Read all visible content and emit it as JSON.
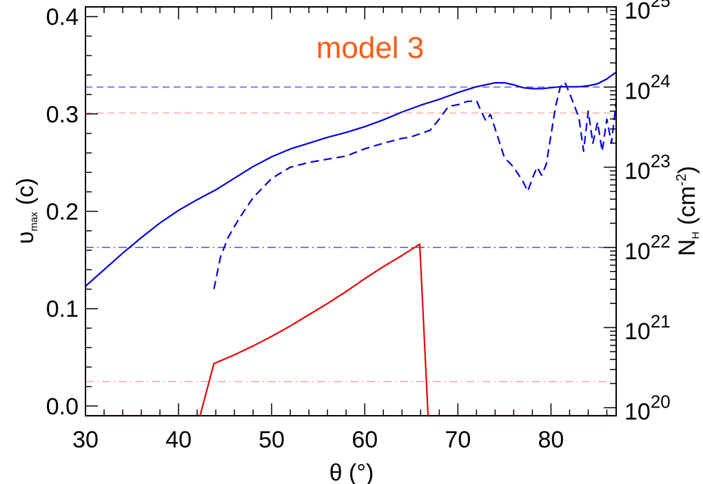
{
  "chart_data": {
    "type": "line",
    "annotation": {
      "text": "model 3",
      "color": "#ff5a14"
    },
    "xlabel": {
      "main": "θ (°)"
    },
    "ylabel_left": {
      "main": "υ",
      "sub": "max",
      "unit": " (c)"
    },
    "ylabel_right": {
      "main": "N",
      "sub": "H",
      "unit_open": " (cm",
      "unit_sup": "-2",
      "unit_close": ")"
    },
    "xlim": [
      30,
      87
    ],
    "ylim_left": [
      -0.01,
      0.41
    ],
    "ylim_right_log": [
      19.9,
      25.0
    ],
    "x_ticks": [
      30,
      40,
      50,
      60,
      70,
      80
    ],
    "x_tick_labels": [
      "30",
      "40",
      "50",
      "60",
      "70",
      "80"
    ],
    "y_left_ticks": [
      0.0,
      0.1,
      0.2,
      0.3,
      0.4
    ],
    "y_left_tick_labels": [
      "0.0",
      "0.1",
      "0.2",
      "0.3",
      "0.4"
    ],
    "y_right_ticks": [
      20,
      21,
      22,
      23,
      24,
      25
    ],
    "y_right_tick_labels": [
      {
        "base": "10",
        "exp": "20"
      },
      {
        "base": "10",
        "exp": "21"
      },
      {
        "base": "10",
        "exp": "22"
      },
      {
        "base": "10",
        "exp": "23"
      },
      {
        "base": "10",
        "exp": "24"
      },
      {
        "base": "10",
        "exp": "25"
      }
    ],
    "series": [
      {
        "axis": "left",
        "style": "solid",
        "color": "#0000dd",
        "x": [
          30,
          32,
          34,
          36,
          38,
          40,
          42,
          44,
          46,
          48,
          50,
          52,
          54,
          56,
          58,
          60,
          62,
          64,
          66,
          68,
          70,
          72,
          74,
          75,
          76,
          77,
          78,
          79,
          80,
          81,
          82,
          83,
          84,
          85,
          86,
          87
        ],
        "y": [
          0.123,
          0.14,
          0.157,
          0.173,
          0.188,
          0.201,
          0.212,
          0.222,
          0.234,
          0.246,
          0.256,
          0.264,
          0.27,
          0.276,
          0.281,
          0.287,
          0.294,
          0.302,
          0.309,
          0.315,
          0.322,
          0.328,
          0.332,
          0.332,
          0.33,
          0.327,
          0.326,
          0.326,
          0.327,
          0.328,
          0.328,
          0.328,
          0.329,
          0.331,
          0.336,
          0.343
        ]
      },
      {
        "axis": "right",
        "style": "dashed",
        "color": "#0000dd",
        "x": [
          43.8,
          44.5,
          45.3,
          46.5,
          48,
          50,
          52,
          54,
          56,
          58,
          60,
          62,
          64,
          65,
          66,
          67,
          68,
          69,
          70,
          71,
          72,
          72.5,
          73,
          73.5,
          74,
          75,
          76,
          77,
          77.5,
          78,
          78.5,
          79,
          79.5,
          80,
          80.5,
          81,
          81.5,
          82,
          83,
          83.5,
          84,
          84.5,
          85,
          85.5,
          86,
          86.5,
          87
        ],
        "y": [
          21.48,
          21.88,
          22.12,
          22.36,
          22.62,
          22.86,
          23.0,
          23.06,
          23.1,
          23.14,
          23.23,
          23.3,
          23.36,
          23.38,
          23.42,
          23.46,
          23.6,
          23.76,
          23.78,
          23.82,
          23.83,
          23.7,
          23.58,
          23.66,
          23.48,
          23.12,
          23.0,
          22.82,
          22.7,
          22.86,
          23.0,
          22.9,
          23.04,
          23.4,
          23.76,
          24.0,
          24.06,
          23.92,
          23.62,
          23.2,
          23.7,
          23.3,
          23.56,
          23.2,
          23.6,
          23.3,
          23.82
        ]
      },
      {
        "axis": "right",
        "style": "solid",
        "color": "#ee0000",
        "x": [
          30,
          42.3,
          43.8,
          46,
          48,
          50,
          52,
          54,
          56,
          58,
          60,
          62,
          64,
          65.9,
          66.8,
          87
        ],
        "y": [
          19.9,
          19.9,
          20.55,
          20.66,
          20.77,
          20.89,
          21.02,
          21.16,
          21.3,
          21.45,
          21.61,
          21.76,
          21.9,
          22.04,
          19.9,
          19.9
        ]
      }
    ],
    "reference_lines": [
      {
        "axis": "right",
        "value": 24.0,
        "style": "dashed",
        "color": "#3a3aff"
      },
      {
        "axis": "left",
        "value": 0.301,
        "style": "dashed",
        "color": "#ff9a9a"
      },
      {
        "axis": "right",
        "value": 22.0,
        "style": "dashdot",
        "color": "#3a3aff"
      },
      {
        "axis": "left",
        "value": 0.025,
        "style": "dashdot",
        "color": "#ff9a9a"
      }
    ]
  }
}
